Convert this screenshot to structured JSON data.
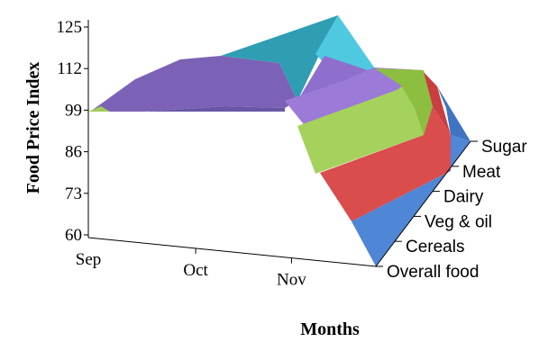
{
  "chart_data": {
    "type": "area",
    "subtype": "3d-surface",
    "ylabel": "Food Price Index",
    "xlabel": "Months",
    "categories": [
      "Sep",
      "Oct",
      "Nov"
    ],
    "series_axis_labels": [
      "Overall food",
      "Cereals",
      "Veg & oil",
      "Dairy",
      "Meat",
      "Sugar"
    ],
    "yticks": [
      "125",
      "112",
      "99",
      "86",
      "73",
      "60"
    ],
    "ylim": [
      60,
      125
    ],
    "grid": false,
    "legend": "none",
    "band_colors": [
      "#4f86d6",
      "#d94f4f",
      "#9fcc57",
      "#8c6bc0",
      "#3aaec9",
      "#4ec9e0"
    ]
  }
}
